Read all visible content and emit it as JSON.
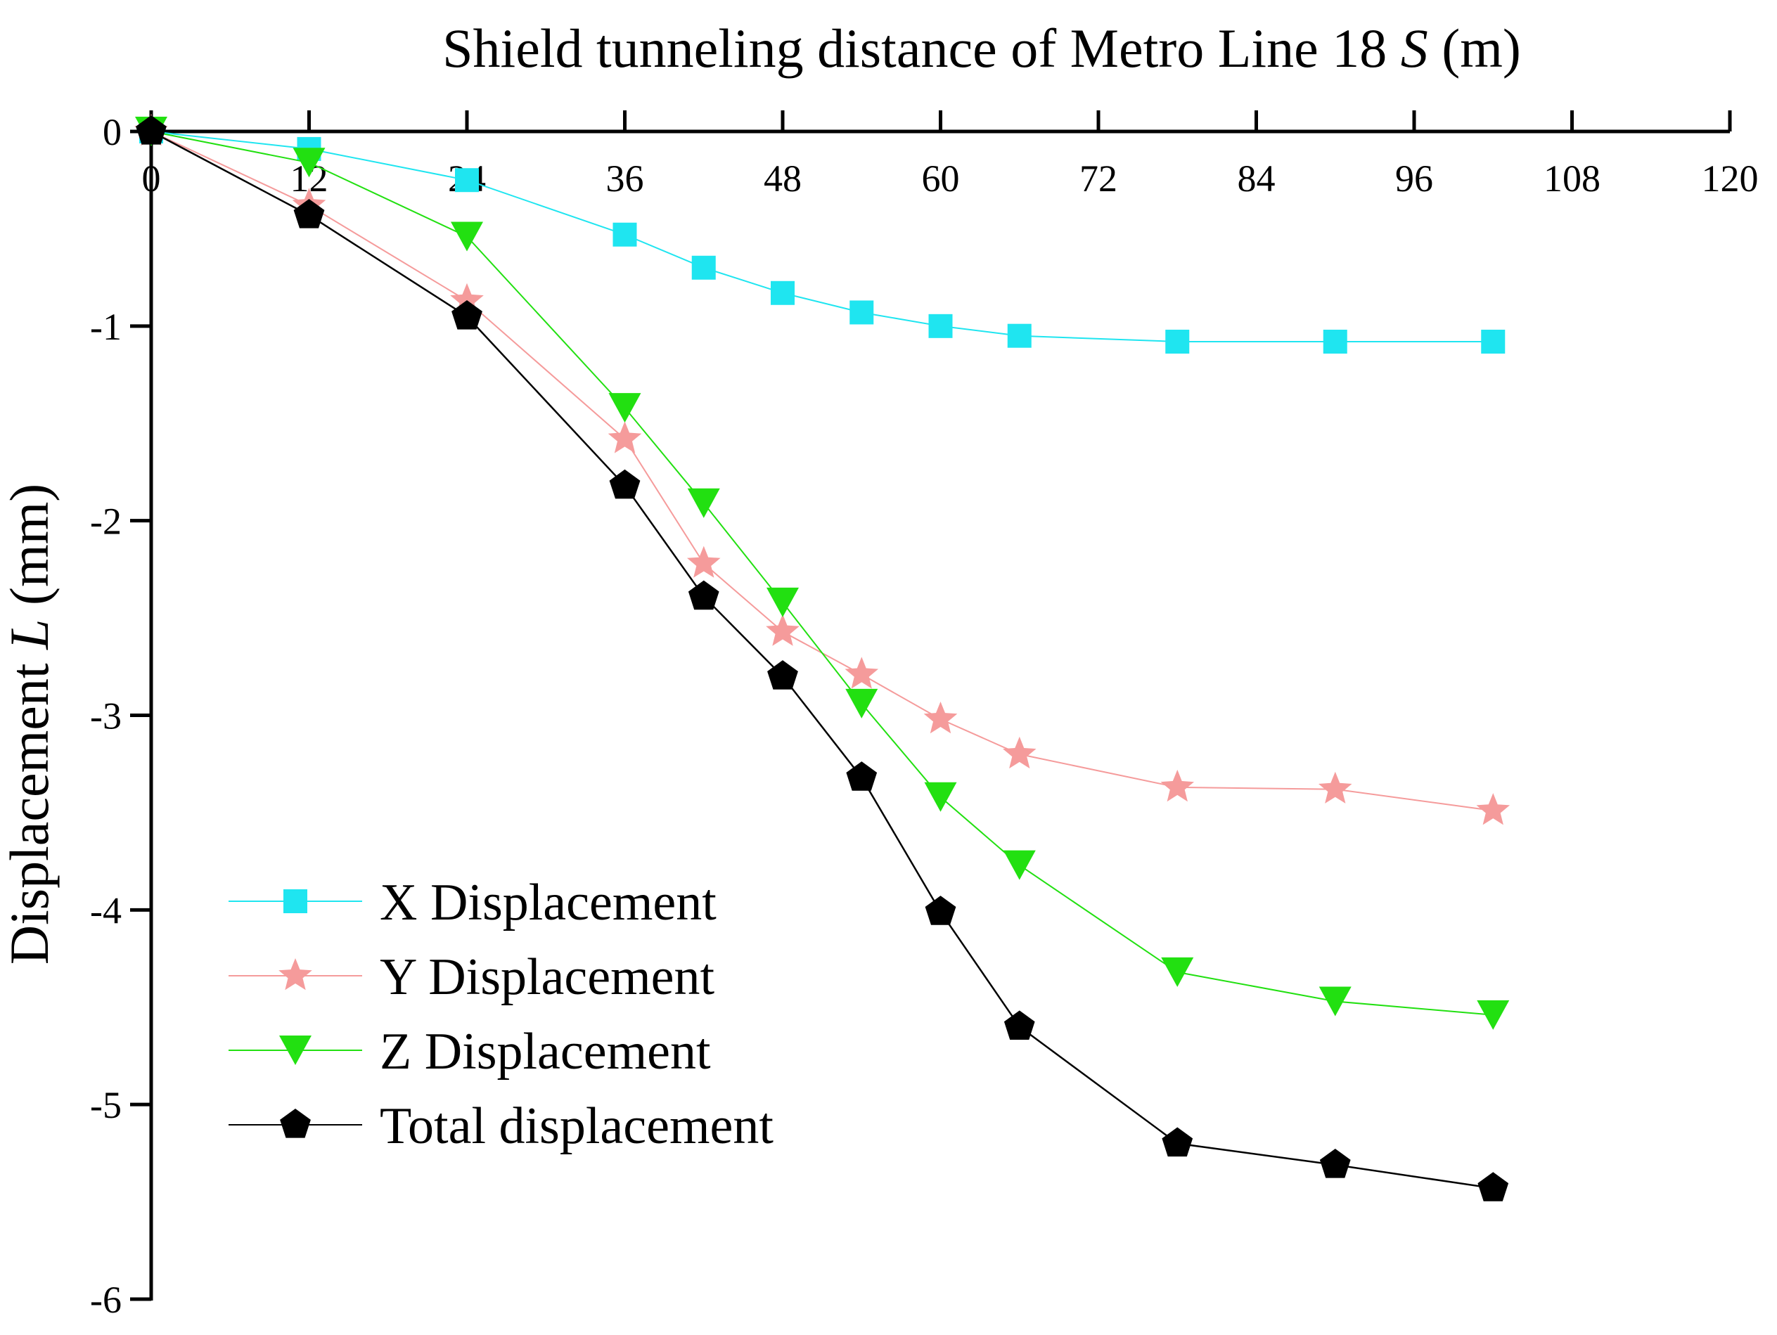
{
  "chart_data": {
    "type": "line",
    "title": "",
    "xlabel": {
      "main": "Shield tunneling distance of Metro Line 18 ",
      "symbol": "S",
      "unit": " (m)"
    },
    "ylabel": {
      "main": "Displacement ",
      "symbol": "L",
      "unit": " (mm)"
    },
    "x_axis_position": "top",
    "xlim": [
      0,
      120
    ],
    "ylim": [
      -6,
      0
    ],
    "xticks": [
      0,
      12,
      24,
      36,
      48,
      60,
      72,
      84,
      96,
      108,
      120
    ],
    "yticks": [
      0,
      -1,
      -2,
      -3,
      -4,
      -5,
      -6
    ],
    "grid": false,
    "legend_position": "bottom-left",
    "x": [
      0,
      12,
      24,
      36,
      42,
      48,
      54,
      60,
      66,
      78,
      90,
      102
    ],
    "series": [
      {
        "name": "X Displacement",
        "color": "#1fe5f0",
        "marker": "square",
        "values": [
          0,
          -0.09,
          -0.25,
          -0.53,
          -0.7,
          -0.83,
          -0.93,
          -1.0,
          -1.05,
          -1.08,
          -1.08,
          -1.08
        ]
      },
      {
        "name": "Y Displacement",
        "color": "#f59b9b",
        "marker": "star",
        "values": [
          0,
          -0.38,
          -0.87,
          -1.58,
          -2.22,
          -2.57,
          -2.79,
          -3.02,
          -3.2,
          -3.37,
          -3.38,
          -3.49
        ]
      },
      {
        "name": "Z Displacement",
        "color": "#22e011",
        "marker": "triangle-down",
        "values": [
          0,
          -0.16,
          -0.54,
          -1.42,
          -1.91,
          -2.42,
          -2.94,
          -3.42,
          -3.77,
          -4.32,
          -4.47,
          -4.54
        ]
      },
      {
        "name": "Total displacement",
        "color": "#000000",
        "marker": "pentagon",
        "values": [
          0,
          -0.43,
          -0.95,
          -1.82,
          -2.39,
          -2.8,
          -3.32,
          -4.01,
          -4.6,
          -5.2,
          -5.31,
          -5.43
        ]
      }
    ]
  }
}
